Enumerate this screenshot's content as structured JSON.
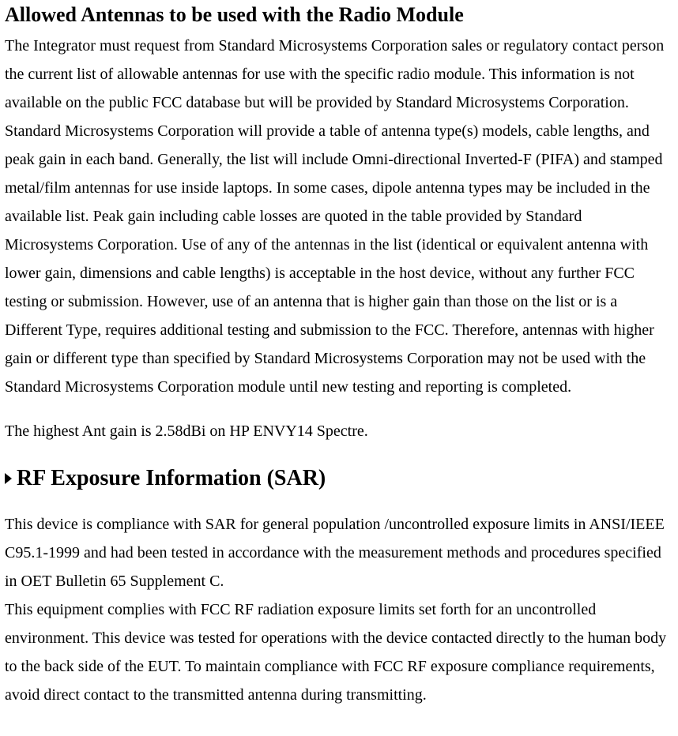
{
  "heading1": "Allowed Antennas to be used with the Radio Module",
  "para1": "The Integrator must request from Standard Microsystems Corporation sales or regulatory contact person the current list of allowable antennas for use with the specific radio module. This information is not available on the public FCC database but will be provided by Standard Microsystems Corporation. Standard Microsystems Corporation will provide a table of antenna type(s) models, cable lengths, and peak gain in each band. Generally, the list will include Omni-directional Inverted-F (PIFA) and stamped metal/film antennas for use inside laptops. In some cases, dipole antenna types may be included in the available list. Peak gain including cable losses are quoted in the table provided by Standard Microsystems Corporation. Use of any of the antennas in the list (identical or equivalent antenna with lower gain, dimensions and cable lengths) is acceptable in the host device, without any further FCC testing or submission. However, use of an antenna that is higher gain than those on the list or is a Different Type, requires additional testing and submission to the FCC. Therefore, antennas with higher gain or different type than specified by Standard Microsystems Corporation may not be used with the Standard Microsystems Corporation module until new testing and reporting is completed.",
  "para2": "The highest Ant gain is 2.58dBi on HP ENVY14 Spectre.",
  "heading2": "RF Exposure Information (SAR)",
  "para3": "This device is compliance with SAR for general population /uncontrolled exposure limits in ANSI/IEEE C95.1-1999 and had been tested in accordance with the measurement methods and procedures specified in OET Bulletin 65 Supplement C.",
  "para4": "This equipment complies with FCC RF radiation exposure limits set forth for an uncontrolled environment. This device was tested for operations with the device contacted directly to the human body to the back side of the EUT. To maintain compliance with FCC RF exposure compliance requirements, avoid direct contact to the transmitted antenna during transmitting."
}
